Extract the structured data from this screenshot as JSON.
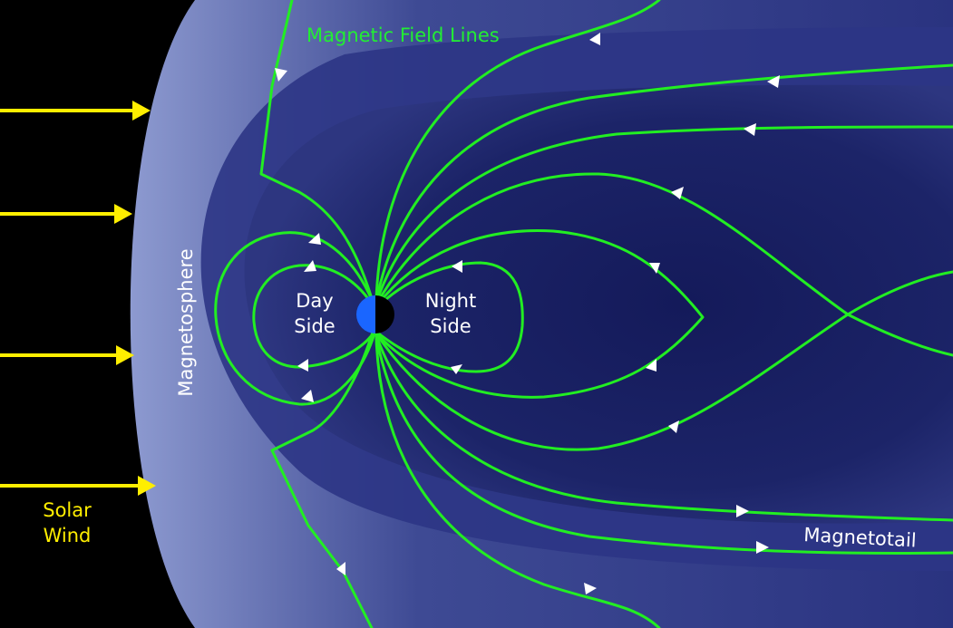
{
  "labels": {
    "field_lines": "Magnetic Field Lines",
    "day": "Day",
    "side_day": "Side",
    "night": "Night",
    "side_night": "Side",
    "magnetosphere": "Magnetosphere",
    "magnetotail": "Magnetotail",
    "solar": "Solar",
    "wind": "Wind"
  },
  "colors": {
    "background": "#000000",
    "magnetosphere_outer": "#8d9ad0",
    "magnetosphere_inner": "#141a5a",
    "field_lines": "#22ee22",
    "solar_wind": "#ffee00",
    "earth_day": "#1a66ff",
    "earth_night": "#000000",
    "text": "#ffffff"
  }
}
